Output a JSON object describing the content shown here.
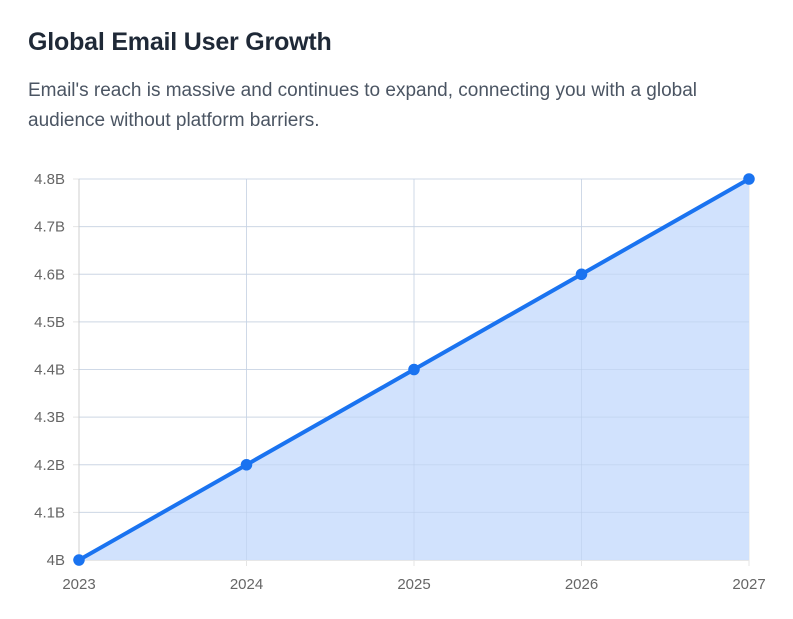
{
  "header": {
    "title": "Global Email User Growth",
    "subtitle": "Email's reach is massive and continues to expand, connecting you with a global audience without platform barriers."
  },
  "colors": {
    "line": "#1a73f0",
    "fill": "#cfe0fd",
    "grid": "#e5e5e5",
    "axis": "#cfcfcf",
    "point": "#1a73f0"
  },
  "chart_data": {
    "type": "area",
    "title": "Global Email User Growth",
    "xlabel": "",
    "ylabel": "",
    "categories": [
      "2023",
      "2024",
      "2025",
      "2026",
      "2027"
    ],
    "series": [
      {
        "values": [
          4.0,
          4.2,
          4.4,
          4.6,
          4.8
        ]
      }
    ],
    "ylim": [
      4.0,
      4.8
    ],
    "y_ticks": [
      4.0,
      4.1,
      4.2,
      4.3,
      4.4,
      4.5,
      4.6,
      4.7,
      4.8
    ],
    "y_tick_labels": [
      "4B",
      "4.1B",
      "4.2B",
      "4.3B",
      "4.4B",
      "4.5B",
      "4.6B",
      "4.7B",
      "4.8B"
    ],
    "grid": true,
    "legend": "none"
  }
}
